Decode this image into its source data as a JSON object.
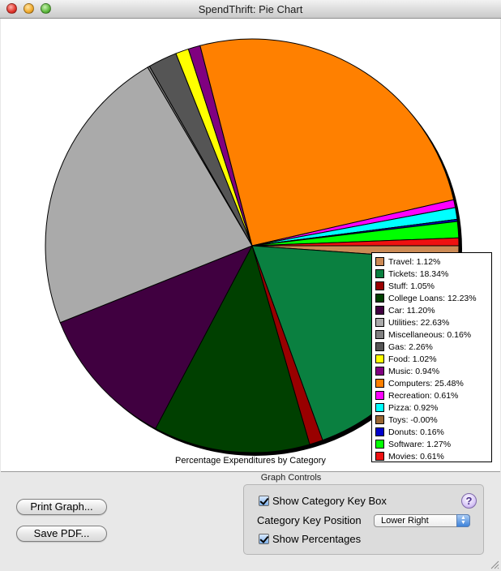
{
  "window": {
    "title": "SpendThrift: Pie Chart"
  },
  "chart_data": {
    "type": "pie",
    "title": "Percentage Expenditures by Category",
    "legend_position": "bottom-right",
    "slices": [
      {
        "label": "Travel: 1.12%",
        "name": "Travel",
        "value": 1.12,
        "color": "#cc8a55"
      },
      {
        "label": "Tickets: 18.34%",
        "name": "Tickets",
        "value": 18.34,
        "color": "#0a8040"
      },
      {
        "label": "Stuff: 1.05%",
        "name": "Stuff",
        "value": 1.05,
        "color": "#990000"
      },
      {
        "label": "College Loans: 12.23%",
        "name": "College Loans",
        "value": 12.23,
        "color": "#004000"
      },
      {
        "label": "Car: 11.20%",
        "name": "Car",
        "value": 11.2,
        "color": "#400040"
      },
      {
        "label": "Utilities: 22.63%",
        "name": "Utilities",
        "value": 22.63,
        "color": "#aaaaaa"
      },
      {
        "label": "Miscellaneous: 0.16%",
        "name": "Miscellaneous",
        "value": 0.16,
        "color": "#808080"
      },
      {
        "label": "Gas: 2.26%",
        "name": "Gas",
        "value": 2.26,
        "color": "#555555"
      },
      {
        "label": "Food: 1.02%",
        "name": "Food",
        "value": 1.02,
        "color": "#ffff00"
      },
      {
        "label": "Music: 0.94%",
        "name": "Music",
        "value": 0.94,
        "color": "#800080"
      },
      {
        "label": "Computers: 25.48%",
        "name": "Computers",
        "value": 25.48,
        "color": "#ff8000"
      },
      {
        "label": "Recreation: 0.61%",
        "name": "Recreation",
        "value": 0.61,
        "color": "#ff00ff"
      },
      {
        "label": "Pizza: 0.92%",
        "name": "Pizza",
        "value": 0.92,
        "color": "#00ffff"
      },
      {
        "label": "Toys: -0.00%",
        "name": "Toys",
        "value": 0.0,
        "color": "#996633"
      },
      {
        "label": "Donuts: 0.16%",
        "name": "Donuts",
        "value": 0.16,
        "color": "#0000cc"
      },
      {
        "label": "Software: 1.27%",
        "name": "Software",
        "value": 1.27,
        "color": "#00ff00"
      },
      {
        "label": "Movies: 0.61%",
        "name": "Movies",
        "value": 0.61,
        "color": "#ee1111"
      }
    ]
  },
  "buttons": {
    "print_label": "Print Graph...",
    "save_label": "Save PDF..."
  },
  "graph_controls": {
    "heading": "Graph Controls",
    "show_key_box_label": "Show Category Key Box",
    "show_key_box_checked": true,
    "key_position_label": "Category Key Position",
    "key_position_value": "Lower Right",
    "show_percentages_label": "Show Percentages",
    "show_percentages_checked": true,
    "help_glyph": "?"
  }
}
